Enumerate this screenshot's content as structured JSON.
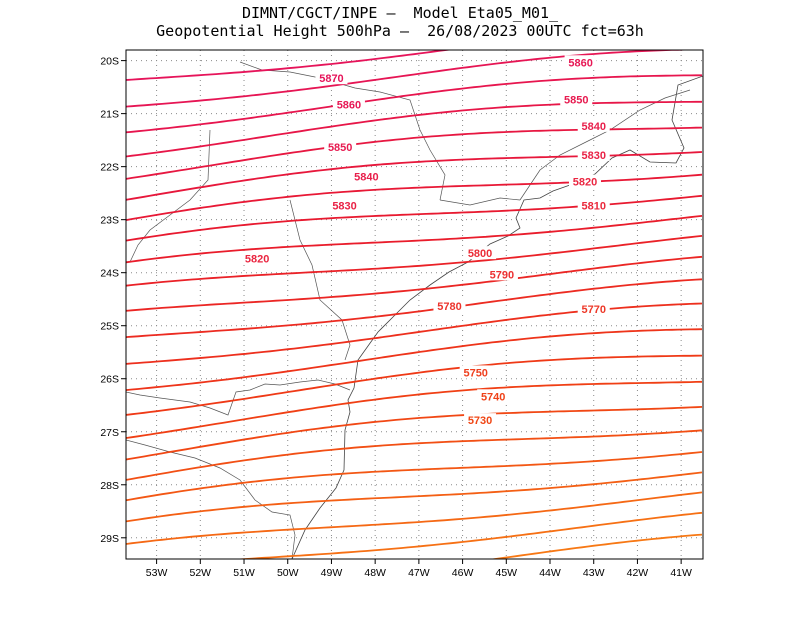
{
  "header": {
    "line1": "DIMNT/CGCT/INPE –  Model Eta05_M01_",
    "line2": "Geopotential Height 500hPa –  26/08/2023 00UTC fct=63h"
  },
  "map": {
    "lon_range": [
      -53.7,
      -40.5
    ],
    "lat_range": [
      -29.4,
      -19.8
    ],
    "grid": "dotted",
    "x_ticks": [
      {
        "v": -53,
        "label": "53W"
      },
      {
        "v": -52,
        "label": "52W"
      },
      {
        "v": -51,
        "label": "51W"
      },
      {
        "v": -50,
        "label": "50W"
      },
      {
        "v": -49,
        "label": "49W"
      },
      {
        "v": -48,
        "label": "48W"
      },
      {
        "v": -47,
        "label": "47W"
      },
      {
        "v": -46,
        "label": "46W"
      },
      {
        "v": -45,
        "label": "45W"
      },
      {
        "v": -44,
        "label": "44W"
      },
      {
        "v": -43,
        "label": "43W"
      },
      {
        "v": -42,
        "label": "42W"
      },
      {
        "v": -41,
        "label": "41W"
      }
    ],
    "y_ticks": [
      {
        "v": -20,
        "label": "20S"
      },
      {
        "v": -21,
        "label": "21S"
      },
      {
        "v": -22,
        "label": "22S"
      },
      {
        "v": -23,
        "label": "23S"
      },
      {
        "v": -24,
        "label": "24S"
      },
      {
        "v": -25,
        "label": "25S"
      },
      {
        "v": -26,
        "label": "26S"
      },
      {
        "v": -27,
        "label": "27S"
      },
      {
        "v": -28,
        "label": "28S"
      },
      {
        "v": -29,
        "label": "29S"
      }
    ],
    "contour_labels": [
      {
        "text": "5870",
        "lon": -49.0,
        "lat": -20.35
      },
      {
        "text": "5860",
        "lon": -48.6,
        "lat": -20.85
      },
      {
        "text": "5850",
        "lon": -48.8,
        "lat": -21.65
      },
      {
        "text": "5840",
        "lon": -48.2,
        "lat": -22.2
      },
      {
        "text": "5830",
        "lon": -48.7,
        "lat": -22.75
      },
      {
        "text": "5820",
        "lon": -50.7,
        "lat": -23.75
      },
      {
        "text": "5860",
        "lon": -43.3,
        "lat": -20.05
      },
      {
        "text": "5850",
        "lon": -43.4,
        "lat": -20.75
      },
      {
        "text": "5840",
        "lon": -43.0,
        "lat": -21.25
      },
      {
        "text": "5830",
        "lon": -43.0,
        "lat": -21.8
      },
      {
        "text": "5820",
        "lon": -43.2,
        "lat": -22.3
      },
      {
        "text": "5810",
        "lon": -43.0,
        "lat": -22.75
      },
      {
        "text": "5800",
        "lon": -45.6,
        "lat": -23.65
      },
      {
        "text": "5790",
        "lon": -45.1,
        "lat": -24.05
      },
      {
        "text": "5780",
        "lon": -46.3,
        "lat": -24.65
      },
      {
        "text": "5770",
        "lon": -43.0,
        "lat": -24.7
      },
      {
        "text": "5750",
        "lon": -45.7,
        "lat": -25.9
      },
      {
        "text": "5740",
        "lon": -45.3,
        "lat": -26.35
      },
      {
        "text": "5730",
        "lon": -45.6,
        "lat": -26.8
      }
    ]
  }
}
